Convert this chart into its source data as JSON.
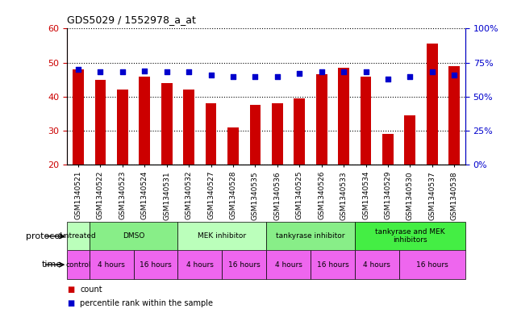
{
  "title": "GDS5029 / 1552978_a_at",
  "samples": [
    "GSM1340521",
    "GSM1340522",
    "GSM1340523",
    "GSM1340524",
    "GSM1340531",
    "GSM1340532",
    "GSM1340527",
    "GSM1340528",
    "GSM1340535",
    "GSM1340536",
    "GSM1340525",
    "GSM1340526",
    "GSM1340533",
    "GSM1340534",
    "GSM1340529",
    "GSM1340530",
    "GSM1340537",
    "GSM1340538"
  ],
  "bar_values": [
    48.0,
    45.0,
    42.0,
    46.0,
    44.0,
    42.0,
    38.0,
    31.0,
    37.5,
    38.0,
    39.5,
    46.5,
    48.5,
    46.0,
    29.0,
    34.5,
    55.5,
    49.0
  ],
  "dot_values": [
    70,
    68,
    68,
    69,
    68,
    68,
    66,
    65,
    65,
    65,
    67,
    68,
    68,
    68,
    63,
    65,
    68,
    66
  ],
  "ylim_left": [
    20,
    60
  ],
  "ylim_right": [
    0,
    100
  ],
  "yticks_left": [
    20,
    30,
    40,
    50,
    60
  ],
  "yticks_right": [
    0,
    25,
    50,
    75,
    100
  ],
  "ytick_labels_right": [
    "0%",
    "25%",
    "50%",
    "75%",
    "100%"
  ],
  "bar_color": "#CC0000",
  "dot_color": "#0000CC",
  "protocol_groups": [
    {
      "label": "untreated",
      "start": 0,
      "end": 1,
      "color": "#bbffbb"
    },
    {
      "label": "DMSO",
      "start": 1,
      "end": 5,
      "color": "#88ee88"
    },
    {
      "label": "MEK inhibitor",
      "start": 5,
      "end": 9,
      "color": "#bbffbb"
    },
    {
      "label": "tankyrase inhibitor",
      "start": 9,
      "end": 13,
      "color": "#88ee88"
    },
    {
      "label": "tankyrase and MEK\ninhibitors",
      "start": 13,
      "end": 18,
      "color": "#44ee44"
    }
  ],
  "time_groups": [
    {
      "label": "control",
      "start": 0,
      "end": 1
    },
    {
      "label": "4 hours",
      "start": 1,
      "end": 3
    },
    {
      "label": "16 hours",
      "start": 3,
      "end": 5
    },
    {
      "label": "4 hours",
      "start": 5,
      "end": 7
    },
    {
      "label": "16 hours",
      "start": 7,
      "end": 9
    },
    {
      "label": "4 hours",
      "start": 9,
      "end": 11
    },
    {
      "label": "16 hours",
      "start": 11,
      "end": 13
    },
    {
      "label": "4 hours",
      "start": 13,
      "end": 15
    },
    {
      "label": "16 hours",
      "start": 15,
      "end": 18
    }
  ],
  "time_color": "#ee66ee",
  "protocol_label": "protocol",
  "time_label": "time",
  "legend_bar": "count",
  "legend_dot": "percentile rank within the sample",
  "fig_width": 6.41,
  "fig_height": 3.93
}
